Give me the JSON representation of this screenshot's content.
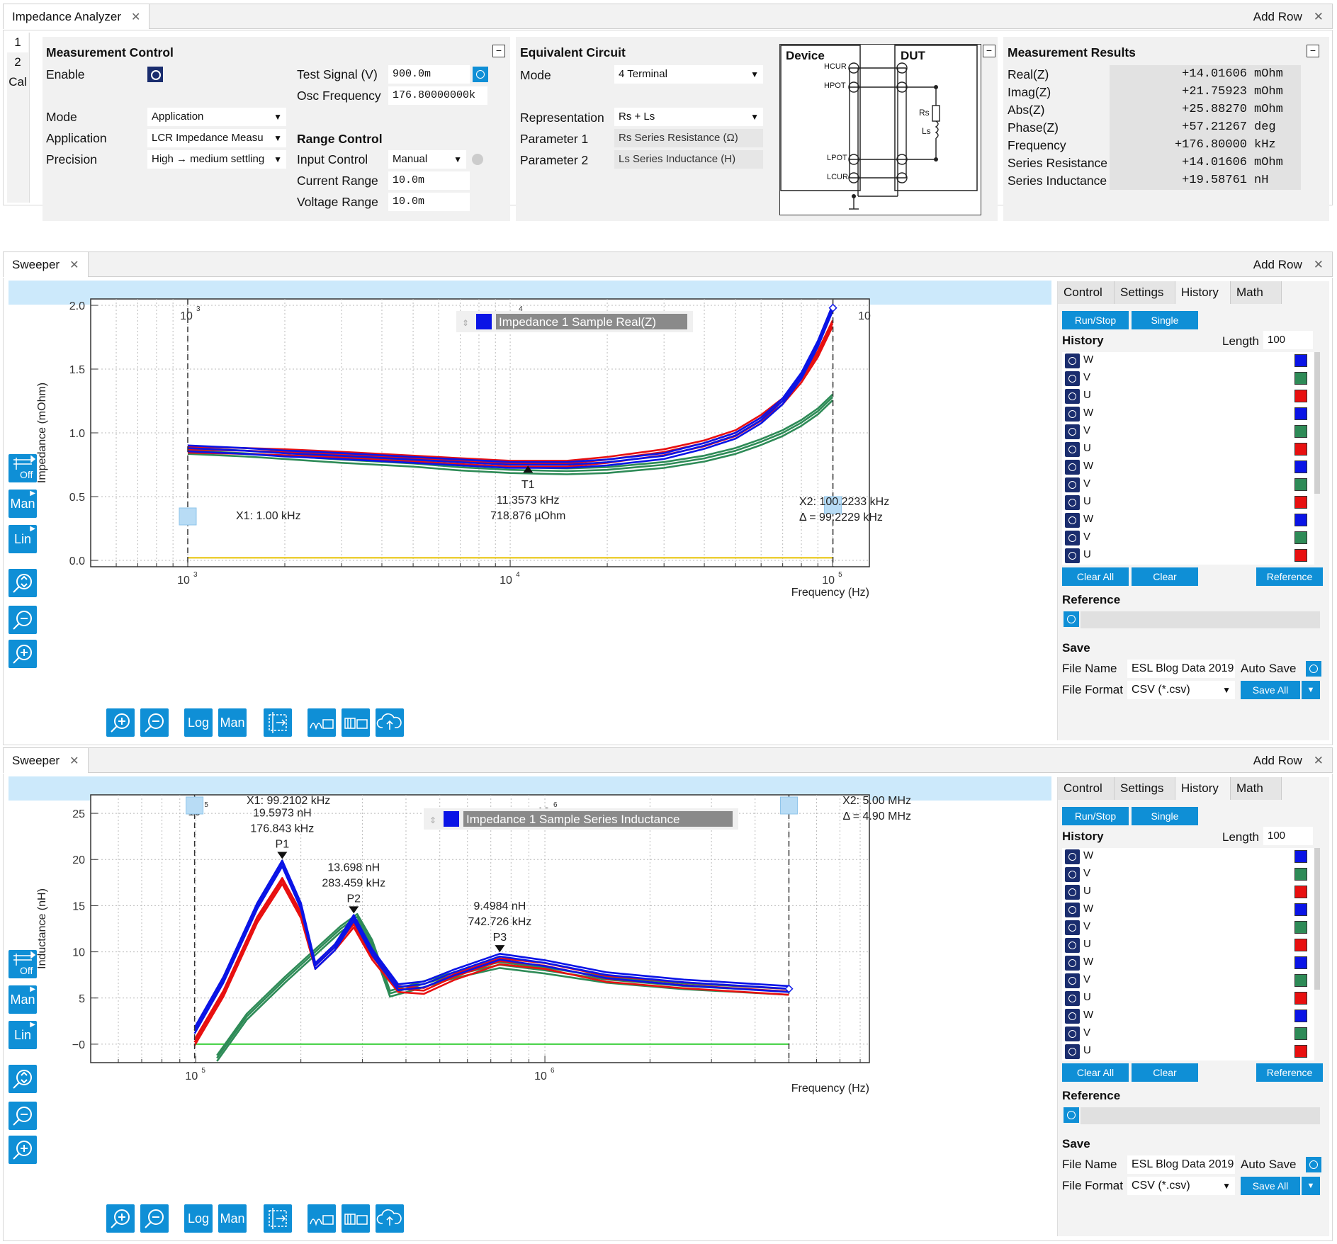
{
  "analyzer": {
    "tab_title": "Impedance Analyzer",
    "add_row": "Add Row",
    "side_tabs": [
      "1",
      "2",
      "Cal"
    ],
    "mc": {
      "title": "Measurement Control",
      "enable": "Enable",
      "test_signal_label": "Test Signal (V)",
      "test_signal": "900.0m",
      "osc_freq_label": "Osc Frequency",
      "osc_freq": "176.80000000k",
      "mode_label": "Mode",
      "mode": "Application",
      "application_label": "Application",
      "application": "LCR Impedance Measu",
      "precision_label": "Precision",
      "precision": "High → medium settling",
      "range_title": "Range Control",
      "input_control_label": "Input Control",
      "input_control": "Manual",
      "current_range_label": "Current Range",
      "current_range": "10.0m",
      "voltage_range_label": "Voltage Range",
      "voltage_range": "10.0m"
    },
    "ec": {
      "title": "Equivalent Circuit",
      "mode_label": "Mode",
      "mode": "4 Terminal",
      "representation_label": "Representation",
      "representation": "Rs + Ls",
      "param1_label": "Parameter 1",
      "param1": "Rs Series Resistance (Ω)",
      "param2_label": "Parameter 2",
      "param2": "Ls Series Inductance (H)"
    },
    "diagram": {
      "device": "Device",
      "dut": "DUT",
      "hcur": "HCUR",
      "hpot": "HPOT",
      "lpot": "LPOT",
      "lcur": "LCUR",
      "rs": "Rs",
      "ls": "Ls"
    },
    "results": {
      "title": "Measurement Results",
      "rows": [
        {
          "label": "Real(Z)",
          "value": "+14.01606",
          "unit": "mOhm"
        },
        {
          "label": "Imag(Z)",
          "value": "+21.75923",
          "unit": "mOhm"
        },
        {
          "label": "Abs(Z)",
          "value": "+25.88270",
          "unit": "mOhm"
        },
        {
          "label": "Phase(Z)",
          "value": "+57.21267",
          "unit": "deg"
        },
        {
          "label": "Frequency",
          "value": "+176.80000",
          "unit": "kHz"
        },
        {
          "label": "Series Resistance",
          "value": "+14.01606",
          "unit": "mOhm"
        },
        {
          "label": "Series Inductance",
          "value": "+19.58761",
          "unit": "nH"
        }
      ]
    }
  },
  "sweepers": [
    {
      "tab_title": "Sweeper",
      "add_row": "Add Row",
      "left_tools": [
        "Off",
        "Man",
        "Lin"
      ],
      "bottom_tools": [
        "Log",
        "Man"
      ],
      "legend": "Impedance 1 Sample Real(Z)",
      "cursor_x1": "X1: 1.00 kHz",
      "cursor_x2": "X2: 100.2233 kHz",
      "cursor_delta": "Δ = 99.2229 kHz",
      "markers": [
        {
          "name": "T1",
          "freq": "11.3573 kHz",
          "value": "718.876 µOhm"
        }
      ],
      "side": {
        "tabs": [
          "Control",
          "Settings",
          "History",
          "Math"
        ],
        "run_stop": "Run/Stop",
        "single": "Single",
        "history_title": "History",
        "length_label": "Length",
        "length": "100",
        "history_items": [
          "W",
          "V",
          "U",
          "W",
          "V",
          "U",
          "W",
          "V",
          "U",
          "W",
          "V",
          "U"
        ],
        "clear_all": "Clear All",
        "clear": "Clear",
        "reference_btn": "Reference",
        "reference_title": "Reference",
        "save_title": "Save",
        "file_name_label": "File Name",
        "file_name": "ESL Blog Data 2019",
        "auto_save": "Auto Save",
        "file_format_label": "File Format",
        "file_format": "CSV (*.csv)",
        "save_all": "Save All"
      }
    },
    {
      "tab_title": "Sweeper",
      "add_row": "Add Row",
      "left_tools": [
        "Off",
        "Man",
        "Lin"
      ],
      "bottom_tools": [
        "Log",
        "Man"
      ],
      "legend": "Impedance 1 Sample Series Inductance",
      "cursor_x1": "X1: 99.2102 kHz",
      "cursor_x2": "X2: 5.00 MHz",
      "cursor_delta": "Δ = 4.90 MHz",
      "markers": [
        {
          "name": "P1",
          "value": "19.5973 nH",
          "freq": "176.843 kHz"
        },
        {
          "name": "P2",
          "value": "13.698 nH",
          "freq": "283.459 kHz"
        },
        {
          "name": "P3",
          "value": "9.4984 nH",
          "freq": "742.726 kHz"
        }
      ],
      "side": {
        "tabs": [
          "Control",
          "Settings",
          "History",
          "Math"
        ],
        "run_stop": "Run/Stop",
        "single": "Single",
        "history_title": "History",
        "length_label": "Length",
        "length": "100",
        "history_items": [
          "W",
          "V",
          "U",
          "W",
          "V",
          "U",
          "W",
          "V",
          "U",
          "W",
          "V",
          "U"
        ],
        "clear_all": "Clear All",
        "clear": "Clear",
        "reference_btn": "Reference",
        "reference_title": "Reference",
        "save_title": "Save",
        "file_name_label": "File Name",
        "file_name": "ESL Blog Data 2019",
        "auto_save": "Auto Save",
        "file_format_label": "File Format",
        "file_format": "CSV (*.csv)",
        "save_all": "Save All"
      }
    }
  ],
  "colors": {
    "W": "#0a14e6",
    "V": "#2e8b57",
    "U": "#e81010",
    "accent": "#0f8fd6",
    "yellow": "#e6c200",
    "green": "#3ccf3c"
  },
  "chart_data": [
    {
      "type": "line",
      "xscale": "log",
      "xlabel": "Frequency (Hz)",
      "ylabel": "Impedance (mOhm)",
      "xlim": [
        500,
        130000
      ],
      "ylim": [
        -0.05,
        2.05
      ],
      "yticks": [
        "0.0",
        "0.5",
        "1.0",
        "1.5",
        "2.0"
      ],
      "xticks": [
        {
          "base": "10",
          "exp": "3"
        },
        {
          "base": "10",
          "exp": "4"
        },
        {
          "base": "10",
          "exp": "5"
        }
      ],
      "top_xticks": [
        {
          "base": "10",
          "exp": "3"
        },
        {
          "base": "10",
          "exp": "4"
        },
        {
          "base": "10",
          "exp": ""
        }
      ],
      "series": [
        {
          "name": "W",
          "x": [
            1000,
            1500,
            2000,
            3000,
            5000,
            7000,
            10000,
            15000,
            20000,
            30000,
            40000,
            50000,
            60000,
            70000,
            80000,
            90000,
            100000
          ],
          "y": [
            0.88,
            0.86,
            0.84,
            0.82,
            0.79,
            0.77,
            0.75,
            0.75,
            0.77,
            0.82,
            0.9,
            0.98,
            1.1,
            1.25,
            1.45,
            1.7,
            1.98
          ]
        },
        {
          "name": "U",
          "x": [
            1000,
            1500,
            2000,
            3000,
            5000,
            7000,
            10000,
            15000,
            20000,
            30000,
            40000,
            50000,
            60000,
            70000,
            80000,
            90000,
            100000
          ],
          "y": [
            0.87,
            0.86,
            0.85,
            0.83,
            0.8,
            0.78,
            0.76,
            0.76,
            0.79,
            0.85,
            0.92,
            1.0,
            1.12,
            1.25,
            1.42,
            1.62,
            1.86
          ]
        },
        {
          "name": "V",
          "x": [
            1000,
            1500,
            2000,
            3000,
            5000,
            7000,
            10000,
            15000,
            20000,
            30000,
            40000,
            50000,
            60000,
            70000,
            80000,
            90000,
            100000
          ],
          "y": [
            0.86,
            0.84,
            0.82,
            0.79,
            0.76,
            0.73,
            0.71,
            0.7,
            0.71,
            0.75,
            0.8,
            0.86,
            0.93,
            1.0,
            1.08,
            1.17,
            1.28
          ]
        },
        {
          "name": "yellow",
          "x": [
            1000,
            5000,
            10000,
            50000,
            100000
          ],
          "y": [
            0.02,
            0.02,
            0.02,
            0.02,
            0.02
          ]
        }
      ],
      "cursors_x": [
        1000,
        100223.3
      ]
    },
    {
      "type": "line",
      "xscale": "log",
      "xlabel": "Frequency (Hz)",
      "ylabel": "Inductance (nH)",
      "xlim": [
        50000,
        8500000
      ],
      "ylim": [
        -2,
        27
      ],
      "yticks": [
        "−0",
        "5",
        "10",
        "15",
        "20",
        "25"
      ],
      "xticks": [
        {
          "base": "10",
          "exp": "5"
        },
        {
          "base": "10",
          "exp": "6"
        }
      ],
      "top_xticks": [
        {
          "base": "10",
          "exp": "5"
        },
        {
          "base": "10",
          "exp": "6"
        }
      ],
      "series": [
        {
          "name": "W",
          "x": [
            99210,
            120000,
            150000,
            176843,
            200000,
            220000,
            250000,
            283459,
            320000,
            380000,
            450000,
            550000,
            742726,
            1000000,
            1500000,
            2500000,
            5000000
          ],
          "y": [
            1.5,
            7,
            15,
            19.6,
            15,
            8.5,
            10.5,
            13.7,
            10,
            6.2,
            6.5,
            7.8,
            9.5,
            8.8,
            7.5,
            6.7,
            6.0
          ]
        },
        {
          "name": "U",
          "x": [
            99210,
            120000,
            150000,
            176843,
            200000,
            220000,
            250000,
            283459,
            320000,
            380000,
            450000,
            550000,
            742726,
            1000000,
            1500000,
            2500000,
            5000000
          ],
          "y": [
            0.2,
            5.5,
            13.5,
            17.7,
            14,
            8.5,
            10.5,
            13.0,
            9.5,
            6.0,
            5.8,
            7.3,
            9.0,
            8.5,
            7.1,
            6.4,
            5.7
          ]
        },
        {
          "name": "V",
          "x": [
            115000,
            140000,
            180000,
            220000,
            260000,
            290000,
            320000,
            360000,
            420000,
            550000,
            742726,
            1000000,
            1500000,
            2500000,
            5000000
          ],
          "y": [
            -1.5,
            3,
            7,
            10,
            12.5,
            13.8,
            11,
            5.5,
            6.2,
            7.5,
            8.6,
            8.0,
            7.0,
            6.3,
            5.7
          ]
        },
        {
          "name": "green",
          "x": [
            99210,
            500000,
            1000000,
            5000000
          ],
          "y": [
            0,
            0,
            0,
            0
          ]
        }
      ],
      "cursors_x": [
        99210.2,
        5000000
      ]
    }
  ]
}
